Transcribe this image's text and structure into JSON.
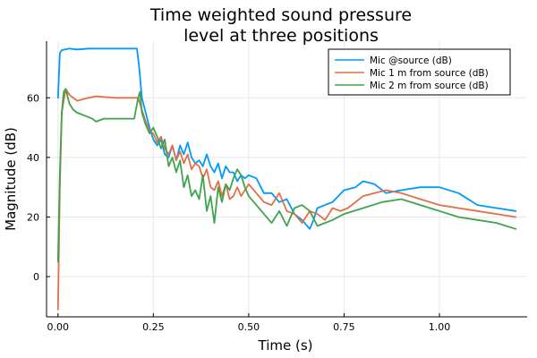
{
  "chart_data": {
    "type": "line",
    "title_lines": [
      "Time weighted sound pressure",
      "level at three positions"
    ],
    "xlabel": "Time (s)",
    "ylabel": "Magnitude (dB)",
    "xlim": [
      -0.03,
      1.23
    ],
    "ylim": [
      -13.5,
      79
    ],
    "xticks": [
      0.0,
      0.25,
      0.5,
      0.75,
      1.0
    ],
    "xtick_labels": [
      "0.00",
      "0.25",
      "0.50",
      "0.75",
      "1.00"
    ],
    "yticks": [
      0,
      20,
      40,
      60
    ],
    "ytick_labels": [
      "0",
      "20",
      "40",
      "60"
    ],
    "grid": true,
    "legend_position": "top-right",
    "series": [
      {
        "name": "Mic @source (dB)",
        "color": "#009AFA",
        "x": [
          0.0,
          0.005,
          0.01,
          0.03,
          0.05,
          0.08,
          0.1,
          0.15,
          0.2,
          0.207,
          0.213,
          0.22,
          0.23,
          0.24,
          0.25,
          0.26,
          0.27,
          0.28,
          0.29,
          0.3,
          0.31,
          0.32,
          0.33,
          0.34,
          0.35,
          0.36,
          0.37,
          0.38,
          0.39,
          0.4,
          0.41,
          0.42,
          0.43,
          0.44,
          0.45,
          0.46,
          0.47,
          0.48,
          0.49,
          0.5,
          0.52,
          0.54,
          0.56,
          0.58,
          0.6,
          0.62,
          0.64,
          0.66,
          0.67,
          0.68,
          0.7,
          0.72,
          0.75,
          0.78,
          0.8,
          0.83,
          0.86,
          0.9,
          0.95,
          1.0,
          1.05,
          1.1,
          1.15,
          1.2
        ],
        "y": [
          60,
          75,
          76,
          76.5,
          76.2,
          76.5,
          76.5,
          76.5,
          76.5,
          76.5,
          70,
          60,
          55,
          50,
          46,
          44,
          46,
          41,
          40,
          44,
          39,
          44,
          41,
          45,
          40,
          38,
          39,
          37,
          41,
          37,
          35,
          38,
          33,
          37,
          35,
          35,
          32,
          34,
          33,
          34,
          33,
          28,
          28,
          25,
          26,
          21,
          19,
          16,
          19,
          23,
          24,
          25,
          29,
          30,
          32,
          31,
          28,
          29,
          30,
          30,
          28,
          24,
          23,
          22
        ]
      },
      {
        "name": "Mic 1 m from source (dB)",
        "color": "#E26F46",
        "x": [
          0.0,
          0.005,
          0.01,
          0.02,
          0.03,
          0.05,
          0.08,
          0.1,
          0.15,
          0.2,
          0.21,
          0.22,
          0.23,
          0.24,
          0.25,
          0.26,
          0.27,
          0.28,
          0.29,
          0.3,
          0.31,
          0.32,
          0.33,
          0.34,
          0.35,
          0.36,
          0.37,
          0.38,
          0.39,
          0.4,
          0.41,
          0.42,
          0.43,
          0.44,
          0.45,
          0.46,
          0.47,
          0.48,
          0.49,
          0.5,
          0.52,
          0.54,
          0.56,
          0.58,
          0.6,
          0.62,
          0.64,
          0.66,
          0.68,
          0.7,
          0.72,
          0.74,
          0.76,
          0.78,
          0.8,
          0.83,
          0.86,
          0.9,
          0.95,
          1.0,
          1.05,
          1.1,
          1.15,
          1.2
        ],
        "y": [
          -11,
          30,
          55,
          63,
          61,
          59,
          60,
          60.5,
          60,
          60,
          60,
          56,
          52,
          49,
          48,
          45,
          47,
          43,
          41,
          44,
          39,
          42,
          38,
          41,
          36,
          38,
          37,
          33,
          36,
          30,
          29,
          32,
          27,
          31,
          26,
          27,
          30,
          27,
          29,
          31,
          28,
          25,
          24,
          28,
          22,
          21,
          18,
          22,
          21,
          19,
          23,
          22,
          23,
          25,
          27,
          28,
          29,
          28,
          26,
          24,
          23,
          22,
          21,
          20
        ]
      },
      {
        "name": "Mic 2 m from source (dB)",
        "color": "#3EA44E",
        "x": [
          0.0,
          0.005,
          0.01,
          0.015,
          0.02,
          0.03,
          0.04,
          0.05,
          0.07,
          0.09,
          0.1,
          0.12,
          0.15,
          0.2,
          0.21,
          0.215,
          0.22,
          0.23,
          0.24,
          0.25,
          0.26,
          0.27,
          0.28,
          0.29,
          0.3,
          0.31,
          0.32,
          0.33,
          0.34,
          0.35,
          0.36,
          0.37,
          0.38,
          0.39,
          0.4,
          0.41,
          0.42,
          0.43,
          0.44,
          0.45,
          0.46,
          0.47,
          0.48,
          0.49,
          0.5,
          0.52,
          0.54,
          0.56,
          0.58,
          0.6,
          0.62,
          0.64,
          0.66,
          0.68,
          0.7,
          0.72,
          0.75,
          0.8,
          0.85,
          0.9,
          0.95,
          1.0,
          1.05,
          1.1,
          1.15,
          1.2
        ],
        "y": [
          5,
          35,
          55,
          62,
          63,
          58,
          56,
          55,
          54,
          53,
          52,
          53,
          53,
          53,
          60,
          62,
          55,
          51,
          48,
          50,
          47,
          43,
          46,
          37,
          40,
          35,
          39,
          30,
          34,
          27,
          29,
          26,
          34,
          22,
          27,
          18,
          30,
          25,
          31,
          29,
          33,
          36,
          34,
          30,
          27,
          24,
          21,
          18,
          22,
          17,
          23,
          24,
          22,
          17,
          18,
          19,
          21,
          23,
          25,
          26,
          24,
          22,
          20,
          19,
          18,
          16
        ]
      }
    ]
  }
}
